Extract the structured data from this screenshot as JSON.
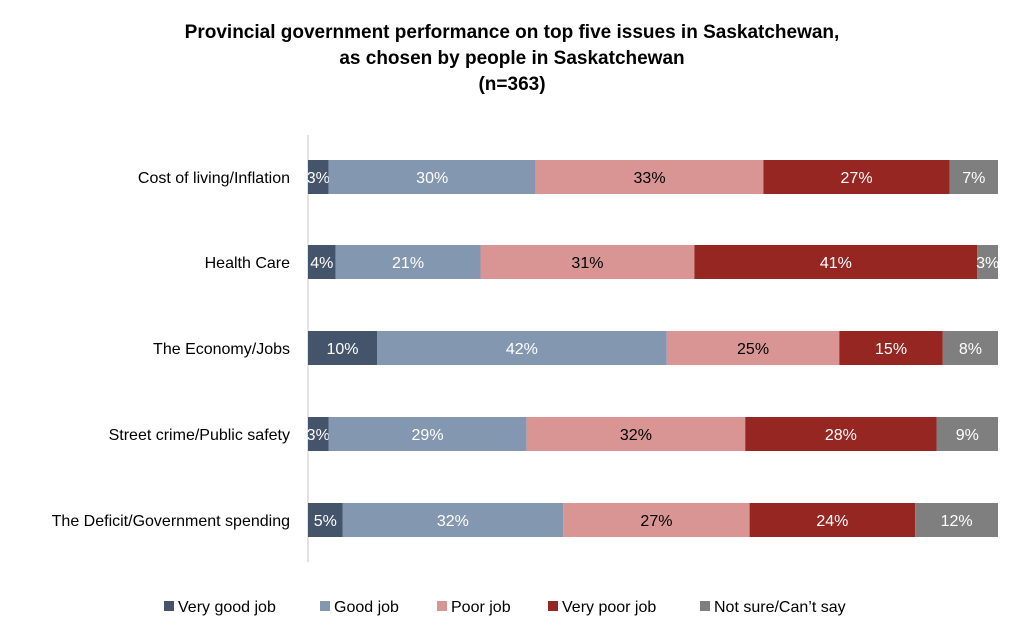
{
  "chart_data": {
    "type": "bar",
    "orientation": "horizontal",
    "stacked": true,
    "title_lines": [
      "Provincial government performance on top five issues in Saskatchewan,",
      "as chosen by people in Saskatchewan",
      "(n=363)"
    ],
    "categories": [
      "Cost of living/Inflation",
      "Health Care",
      "The Economy/Jobs",
      "Street crime/Public safety",
      "The Deficit/Government spending"
    ],
    "series": [
      {
        "name": "Very good job",
        "color": "#44546a",
        "label_color": "#ffffff",
        "values": [
          3,
          4,
          10,
          3,
          5
        ]
      },
      {
        "name": "Good job",
        "color": "#8497b0",
        "label_color": "#ffffff",
        "values": [
          30,
          21,
          42,
          29,
          32
        ]
      },
      {
        "name": "Poor job",
        "color": "#d99594",
        "label_color": "#000000",
        "values": [
          33,
          31,
          25,
          32,
          27
        ]
      },
      {
        "name": "Very poor job",
        "color": "#962622",
        "label_color": "#ffffff",
        "values": [
          27,
          41,
          15,
          28,
          24
        ]
      },
      {
        "name": "Not sure/Can’t say",
        "color": "#7f7f7f",
        "label_color": "#ffffff",
        "values": [
          7,
          3,
          8,
          9,
          12
        ]
      }
    ],
    "value_suffix": "%",
    "xlim": [
      0,
      100
    ],
    "legend_position": "bottom",
    "grid": false
  }
}
